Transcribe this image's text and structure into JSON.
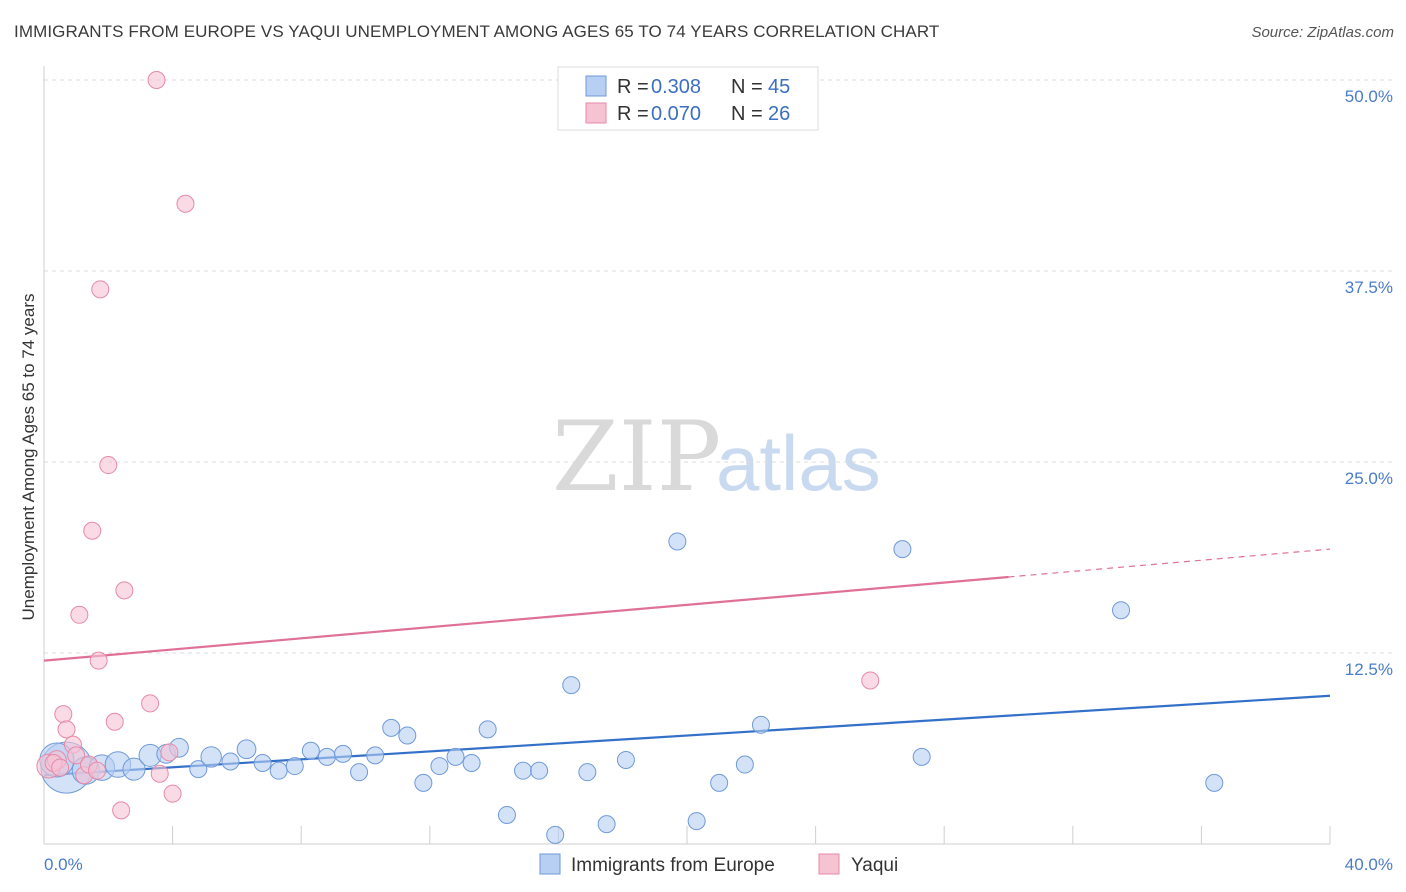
{
  "header": {
    "title": "IMMIGRANTS FROM EUROPE VS YAQUI UNEMPLOYMENT AMONG AGES 65 TO 74 YEARS CORRELATION CHART",
    "source": "Source: ZipAtlas.com"
  },
  "watermark": {
    "zip": "ZIP",
    "atlas": "atlas"
  },
  "colors": {
    "blue_fill": "#b7cff2",
    "blue_stroke": "#6f9ad8",
    "blue_line": "#3370c9",
    "pink_fill": "#f6c3d3",
    "pink_stroke": "#e68aa8",
    "pink_line": "#e07098",
    "tick_text": "#4a7cc9",
    "grid": "#dcdcdc"
  },
  "legend": {
    "rows": [
      {
        "r_label": "R =",
        "r_value": "0.308",
        "n_label": "N =",
        "n_value": "45",
        "series": "blue"
      },
      {
        "r_label": "R =",
        "r_value": "0.070",
        "n_label": "N =",
        "n_value": "26",
        "series": "pink"
      }
    ]
  },
  "chart_data": {
    "type": "scatter",
    "title": "IMMIGRANTS FROM EUROPE VS YAQUI UNEMPLOYMENT AMONG AGES 65 TO 74 YEARS CORRELATION CHART",
    "xlabel": "",
    "ylabel": "Unemployment Among Ages 65 to 74 years",
    "xlim": [
      0,
      40
    ],
    "ylim": [
      0,
      50
    ],
    "x_tick_labels": [
      "0.0%",
      "40.0%"
    ],
    "y_ticks": [
      12.5,
      25.0,
      37.5,
      50.0
    ],
    "y_tick_labels": [
      "12.5%",
      "25.0%",
      "37.5%",
      "50.0%"
    ],
    "grid": true,
    "legend_position": "top-center",
    "series": [
      {
        "name": "Immigrants from Europe",
        "color": "blue",
        "r": 0.308,
        "n": 45,
        "trend": {
          "x0": 0,
          "y0": 4.5,
          "x1": 40,
          "y1": 9.7,
          "solid_until": 40
        },
        "points": [
          {
            "x": 0.7,
            "y": 5.0,
            "s": 3
          },
          {
            "x": 0.4,
            "y": 5.5,
            "s": 2
          },
          {
            "x": 1.3,
            "y": 4.8,
            "s": 1.6
          },
          {
            "x": 1.8,
            "y": 5.0,
            "s": 1.5
          },
          {
            "x": 2.3,
            "y": 5.2,
            "s": 1.5
          },
          {
            "x": 2.8,
            "y": 4.9,
            "s": 1.3
          },
          {
            "x": 3.3,
            "y": 5.8,
            "s": 1.3
          },
          {
            "x": 3.8,
            "y": 5.9,
            "s": 1.1
          },
          {
            "x": 4.2,
            "y": 6.3,
            "s": 1.1
          },
          {
            "x": 4.8,
            "y": 4.9,
            "s": 1.0
          },
          {
            "x": 5.2,
            "y": 5.7,
            "s": 1.2
          },
          {
            "x": 5.8,
            "y": 5.4,
            "s": 1.0
          },
          {
            "x": 6.3,
            "y": 6.2,
            "s": 1.1
          },
          {
            "x": 6.8,
            "y": 5.3,
            "s": 1.0
          },
          {
            "x": 7.3,
            "y": 4.8,
            "s": 1.0
          },
          {
            "x": 7.8,
            "y": 5.1,
            "s": 1.0
          },
          {
            "x": 8.3,
            "y": 6.1,
            "s": 1.0
          },
          {
            "x": 8.8,
            "y": 5.7,
            "s": 1.0
          },
          {
            "x": 9.3,
            "y": 5.9,
            "s": 1.0
          },
          {
            "x": 9.8,
            "y": 4.7,
            "s": 1.0
          },
          {
            "x": 10.3,
            "y": 5.8,
            "s": 1.0
          },
          {
            "x": 10.8,
            "y": 7.6,
            "s": 1.0
          },
          {
            "x": 11.3,
            "y": 7.1,
            "s": 1.0
          },
          {
            "x": 11.8,
            "y": 4.0,
            "s": 1.0
          },
          {
            "x": 12.3,
            "y": 5.1,
            "s": 1.0
          },
          {
            "x": 12.8,
            "y": 5.7,
            "s": 1.0
          },
          {
            "x": 13.3,
            "y": 5.3,
            "s": 1.0
          },
          {
            "x": 13.8,
            "y": 7.5,
            "s": 1.0
          },
          {
            "x": 14.4,
            "y": 1.9,
            "s": 1.0
          },
          {
            "x": 14.9,
            "y": 4.8,
            "s": 1.0
          },
          {
            "x": 15.4,
            "y": 4.8,
            "s": 1.0
          },
          {
            "x": 15.9,
            "y": 0.6,
            "s": 1.0
          },
          {
            "x": 16.4,
            "y": 10.4,
            "s": 1.0
          },
          {
            "x": 16.9,
            "y": 4.7,
            "s": 1.0
          },
          {
            "x": 17.5,
            "y": 1.3,
            "s": 1.0
          },
          {
            "x": 18.1,
            "y": 5.5,
            "s": 1.0
          },
          {
            "x": 19.7,
            "y": 19.8,
            "s": 1.0
          },
          {
            "x": 20.3,
            "y": 1.5,
            "s": 1.0
          },
          {
            "x": 21.0,
            "y": 4.0,
            "s": 1.0
          },
          {
            "x": 21.8,
            "y": 5.2,
            "s": 1.0
          },
          {
            "x": 22.3,
            "y": 7.8,
            "s": 1.0
          },
          {
            "x": 26.7,
            "y": 19.3,
            "s": 1.0
          },
          {
            "x": 27.3,
            "y": 5.7,
            "s": 1.0
          },
          {
            "x": 33.5,
            "y": 15.3,
            "s": 1.0
          },
          {
            "x": 36.4,
            "y": 4.0,
            "s": 1.0
          }
        ]
      },
      {
        "name": "Yaqui",
        "color": "pink",
        "r": 0.07,
        "n": 26,
        "trend": {
          "x0": 0,
          "y0": 12.0,
          "x1": 40,
          "y1": 19.3,
          "solid_until": 30.0
        },
        "points": [
          {
            "x": 0.15,
            "y": 5.1,
            "s": 1.4
          },
          {
            "x": 0.4,
            "y": 5.5,
            "s": 1.1
          },
          {
            "x": 0.6,
            "y": 8.5,
            "s": 1.0
          },
          {
            "x": 0.7,
            "y": 7.5,
            "s": 1.0
          },
          {
            "x": 0.9,
            "y": 6.5,
            "s": 1.0
          },
          {
            "x": 1.0,
            "y": 5.8,
            "s": 1.0
          },
          {
            "x": 1.1,
            "y": 15.0,
            "s": 1.0
          },
          {
            "x": 1.25,
            "y": 4.5,
            "s": 1.0
          },
          {
            "x": 1.4,
            "y": 5.2,
            "s": 1.0
          },
          {
            "x": 1.5,
            "y": 20.5,
            "s": 1.0
          },
          {
            "x": 1.65,
            "y": 4.8,
            "s": 1.0
          },
          {
            "x": 1.7,
            "y": 12.0,
            "s": 1.0
          },
          {
            "x": 1.75,
            "y": 36.3,
            "s": 1.0
          },
          {
            "x": 2.0,
            "y": 24.8,
            "s": 1.0
          },
          {
            "x": 2.2,
            "y": 8.0,
            "s": 1.0
          },
          {
            "x": 2.4,
            "y": 2.2,
            "s": 1.0
          },
          {
            "x": 2.5,
            "y": 16.6,
            "s": 1.0
          },
          {
            "x": 3.3,
            "y": 9.2,
            "s": 1.0
          },
          {
            "x": 3.5,
            "y": 50.0,
            "s": 1.0
          },
          {
            "x": 3.6,
            "y": 4.6,
            "s": 1.0
          },
          {
            "x": 3.9,
            "y": 6.0,
            "s": 1.0
          },
          {
            "x": 4.0,
            "y": 3.3,
            "s": 1.0
          },
          {
            "x": 4.4,
            "y": 41.9,
            "s": 1.0
          },
          {
            "x": 25.7,
            "y": 10.7,
            "s": 1.0
          },
          {
            "x": 0.3,
            "y": 5.3,
            "s": 1.0
          },
          {
            "x": 0.5,
            "y": 5.0,
            "s": 1.0
          }
        ]
      }
    ]
  },
  "bottom_legend": [
    {
      "label": "Immigrants from Europe",
      "color": "blue"
    },
    {
      "label": "Yaqui",
      "color": "pink"
    }
  ]
}
